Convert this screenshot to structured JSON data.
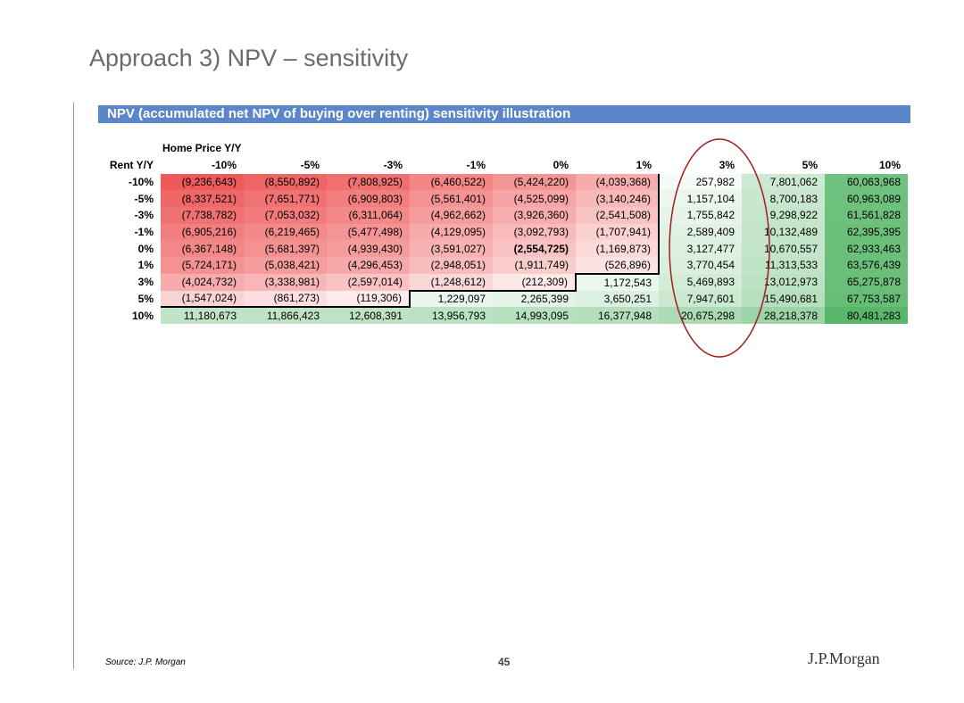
{
  "title": "Approach 3) NPV – sensitivity",
  "table": {
    "title": "NPV (accumulated net NPV of buying over renting) sensitivity illustration",
    "col_axis": "Home Price Y/Y",
    "row_axis": "Rent Y/Y",
    "columns": [
      "-10%",
      "-5%",
      "-3%",
      "-1%",
      "0%",
      "1%",
      "3%",
      "5%",
      "10%"
    ],
    "rows": [
      {
        "label": "-10%",
        "cells": [
          "(9,236,643)",
          "(8,550,892)",
          "(7,808,925)",
          "(6,460,522)",
          "(5,424,220)",
          "(4,039,368)",
          "257,982",
          "7,801,062",
          "60,063,968"
        ]
      },
      {
        "label": "-5%",
        "cells": [
          "(8,337,521)",
          "(7,651,771)",
          "(6,909,803)",
          "(5,561,401)",
          "(4,525,099)",
          "(3,140,246)",
          "1,157,104",
          "8,700,183",
          "60,963,089"
        ]
      },
      {
        "label": "-3%",
        "cells": [
          "(7,738,782)",
          "(7,053,032)",
          "(6,311,064)",
          "(4,962,662)",
          "(3,926,360)",
          "(2,541,508)",
          "1,755,842",
          "9,298,922",
          "61,561,828"
        ]
      },
      {
        "label": "-1%",
        "cells": [
          "(6,905,216)",
          "(6,219,465)",
          "(5,477,498)",
          "(4,129,095)",
          "(3,092,793)",
          "(1,707,941)",
          "2,589,409",
          "10,132,489",
          "62,395,395"
        ]
      },
      {
        "label": "0%",
        "cells": [
          "(6,367,148)",
          "(5,681,397)",
          "(4,939,430)",
          "(3,591,027)",
          "(2,554,725)",
          "(1,169,873)",
          "3,127,477",
          "10,670,557",
          "62,933,463"
        ]
      },
      {
        "label": "1%",
        "cells": [
          "(5,724,171)",
          "(5,038,421)",
          "(4,296,453)",
          "(2,948,051)",
          "(1,911,749)",
          "(526,896)",
          "3,770,454",
          "11,313,533",
          "63,576,439"
        ]
      },
      {
        "label": "3%",
        "cells": [
          "(4,024,732)",
          "(3,338,981)",
          "(2,597,014)",
          "(1,248,612)",
          "(212,309)",
          "1,172,543",
          "5,469,893",
          "13,012,973",
          "65,275,878"
        ]
      },
      {
        "label": "5%",
        "cells": [
          "(1,547,024)",
          "(861,273)",
          "(119,306)",
          "1,229,097",
          "2,265,399",
          "3,650,251",
          "7,947,601",
          "15,490,681",
          "67,753,587"
        ]
      },
      {
        "label": "10%",
        "cells": [
          "11,180,673",
          "11,866,423",
          "12,608,391",
          "13,956,793",
          "14,993,095",
          "16,377,948",
          "20,675,298",
          "28,218,378",
          "80,481,283"
        ]
      }
    ]
  },
  "footer": {
    "source": "Source: J.P. Morgan",
    "page": "45",
    "logo": "J.P.Morgan"
  }
}
